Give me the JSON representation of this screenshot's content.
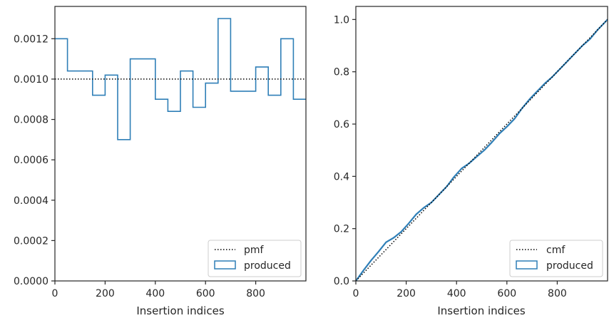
{
  "chart_data": [
    {
      "type": "histogram-step",
      "xlabel": "Insertion indices",
      "ylabel": "",
      "xlim": [
        0,
        1000
      ],
      "ylim": [
        0,
        0.00136
      ],
      "xticks": [
        "0",
        "200",
        "400",
        "600",
        "800"
      ],
      "xtick_values": [
        0,
        200,
        400,
        600,
        800
      ],
      "yticks": [
        "0.0000",
        "0.0002",
        "0.0004",
        "0.0006",
        "0.0008",
        "0.0010",
        "0.0012"
      ],
      "ytick_values": [
        0,
        0.0002,
        0.0004,
        0.0006,
        0.0008,
        0.001,
        0.0012
      ],
      "bin_edges": [
        0,
        50,
        150,
        200,
        250,
        300,
        400,
        450,
        500,
        550,
        600,
        650,
        700,
        800,
        850,
        900,
        950,
        1000
      ],
      "series": [
        {
          "name": "produced",
          "style": "step",
          "color": "#2f7fb7",
          "values": [
            0.0012,
            0.00104,
            0.00092,
            0.00102,
            0.0007,
            0.0011,
            0.0009,
            0.00084,
            0.00104,
            0.00086,
            0.00098,
            0.0013,
            0.00094,
            0.00106,
            0.00092,
            0.0012,
            0.0009
          ]
        },
        {
          "name": "pmf",
          "style": "dotted",
          "color": "#000000",
          "value": 0.001
        }
      ],
      "legend": {
        "placement": "lower-right",
        "entries": [
          "pmf",
          "produced"
        ]
      }
    },
    {
      "type": "line",
      "xlabel": "Insertion indices",
      "ylabel": "",
      "xlim": [
        0,
        1000
      ],
      "ylim": [
        0,
        1.05
      ],
      "xticks": [
        "0",
        "200",
        "400",
        "600",
        "800"
      ],
      "xtick_values": [
        0,
        200,
        400,
        600,
        800
      ],
      "yticks": [
        "0.0",
        "0.2",
        "0.4",
        "0.6",
        "0.8",
        "1.0"
      ],
      "ytick_values": [
        0,
        0.2,
        0.4,
        0.6,
        0.8,
        1.0
      ],
      "series": [
        {
          "name": "produced",
          "style": "solid",
          "color": "#2f7fb7",
          "x": [
            0,
            30,
            60,
            90,
            120,
            150,
            180,
            210,
            240,
            270,
            300,
            330,
            360,
            390,
            420,
            450,
            480,
            510,
            540,
            570,
            600,
            630,
            660,
            690,
            720,
            750,
            780,
            810,
            840,
            870,
            900,
            930,
            960,
            990,
            1000
          ],
          "y": [
            0,
            0.04,
            0.078,
            0.112,
            0.148,
            0.165,
            0.188,
            0.22,
            0.255,
            0.28,
            0.3,
            0.33,
            0.36,
            0.398,
            0.43,
            0.45,
            0.475,
            0.5,
            0.53,
            0.563,
            0.59,
            0.62,
            0.66,
            0.695,
            0.725,
            0.755,
            0.78,
            0.81,
            0.84,
            0.87,
            0.9,
            0.925,
            0.96,
            0.99,
            1.0
          ]
        },
        {
          "name": "cmf",
          "style": "dotted",
          "color": "#000000",
          "x": [
            0,
            1000
          ],
          "y": [
            0,
            1.0
          ]
        }
      ],
      "legend": {
        "placement": "lower-right",
        "entries": [
          "cmf",
          "produced"
        ]
      }
    }
  ]
}
